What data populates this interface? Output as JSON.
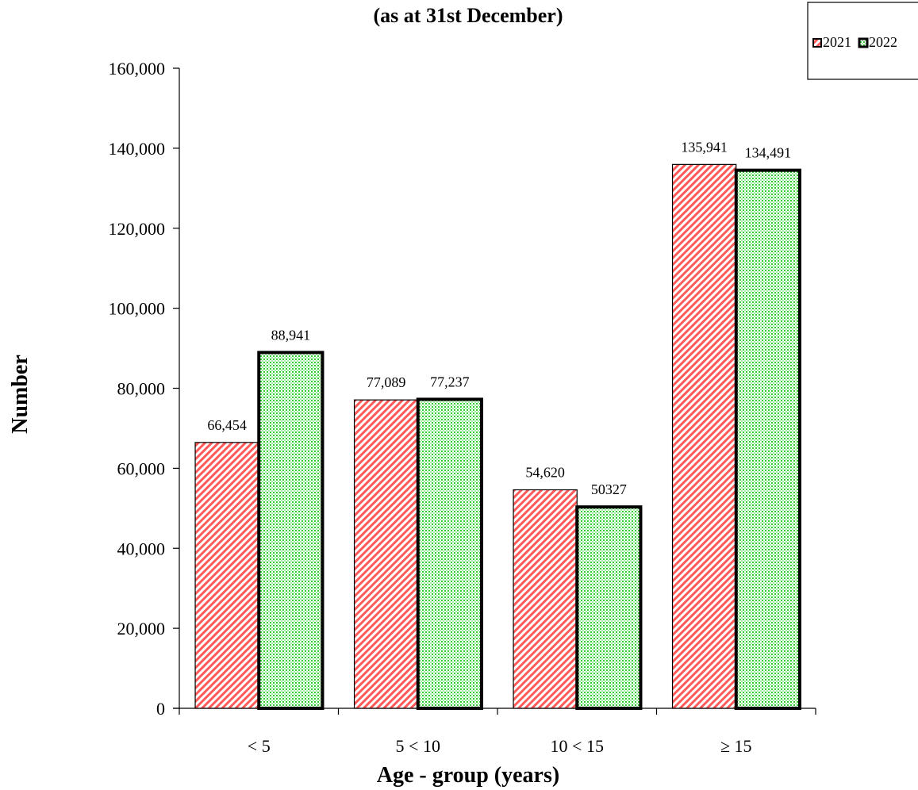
{
  "chart_data": {
    "type": "bar",
    "title": "(as at 31st  December)",
    "xlabel": "Age - group (years)",
    "ylabel": "Number",
    "categories": [
      "<  5",
      "5 < 10",
      "10 < 15",
      "≥ 15"
    ],
    "series": [
      {
        "name": "2021",
        "values": [
          66454,
          77089,
          54620,
          135941
        ],
        "labels": [
          "66,454",
          "77,089",
          "54,620",
          "135,941"
        ],
        "color": "#ff5a5a",
        "pattern": "diagonal-hatch"
      },
      {
        "name": "2022",
        "values": [
          88941,
          77237,
          50327,
          134491
        ],
        "labels": [
          "88,941",
          "77,237",
          "50327",
          "134,491"
        ],
        "color": "#33cc33",
        "pattern": "dots"
      }
    ],
    "ylim": [
      0,
      160000
    ],
    "yticks": [
      "0",
      "20,000",
      "40,000",
      "60,000",
      "80,000",
      "100,000",
      "120,000",
      "140,000",
      "160,000"
    ],
    "grid": false,
    "legend_position": "top-right"
  }
}
